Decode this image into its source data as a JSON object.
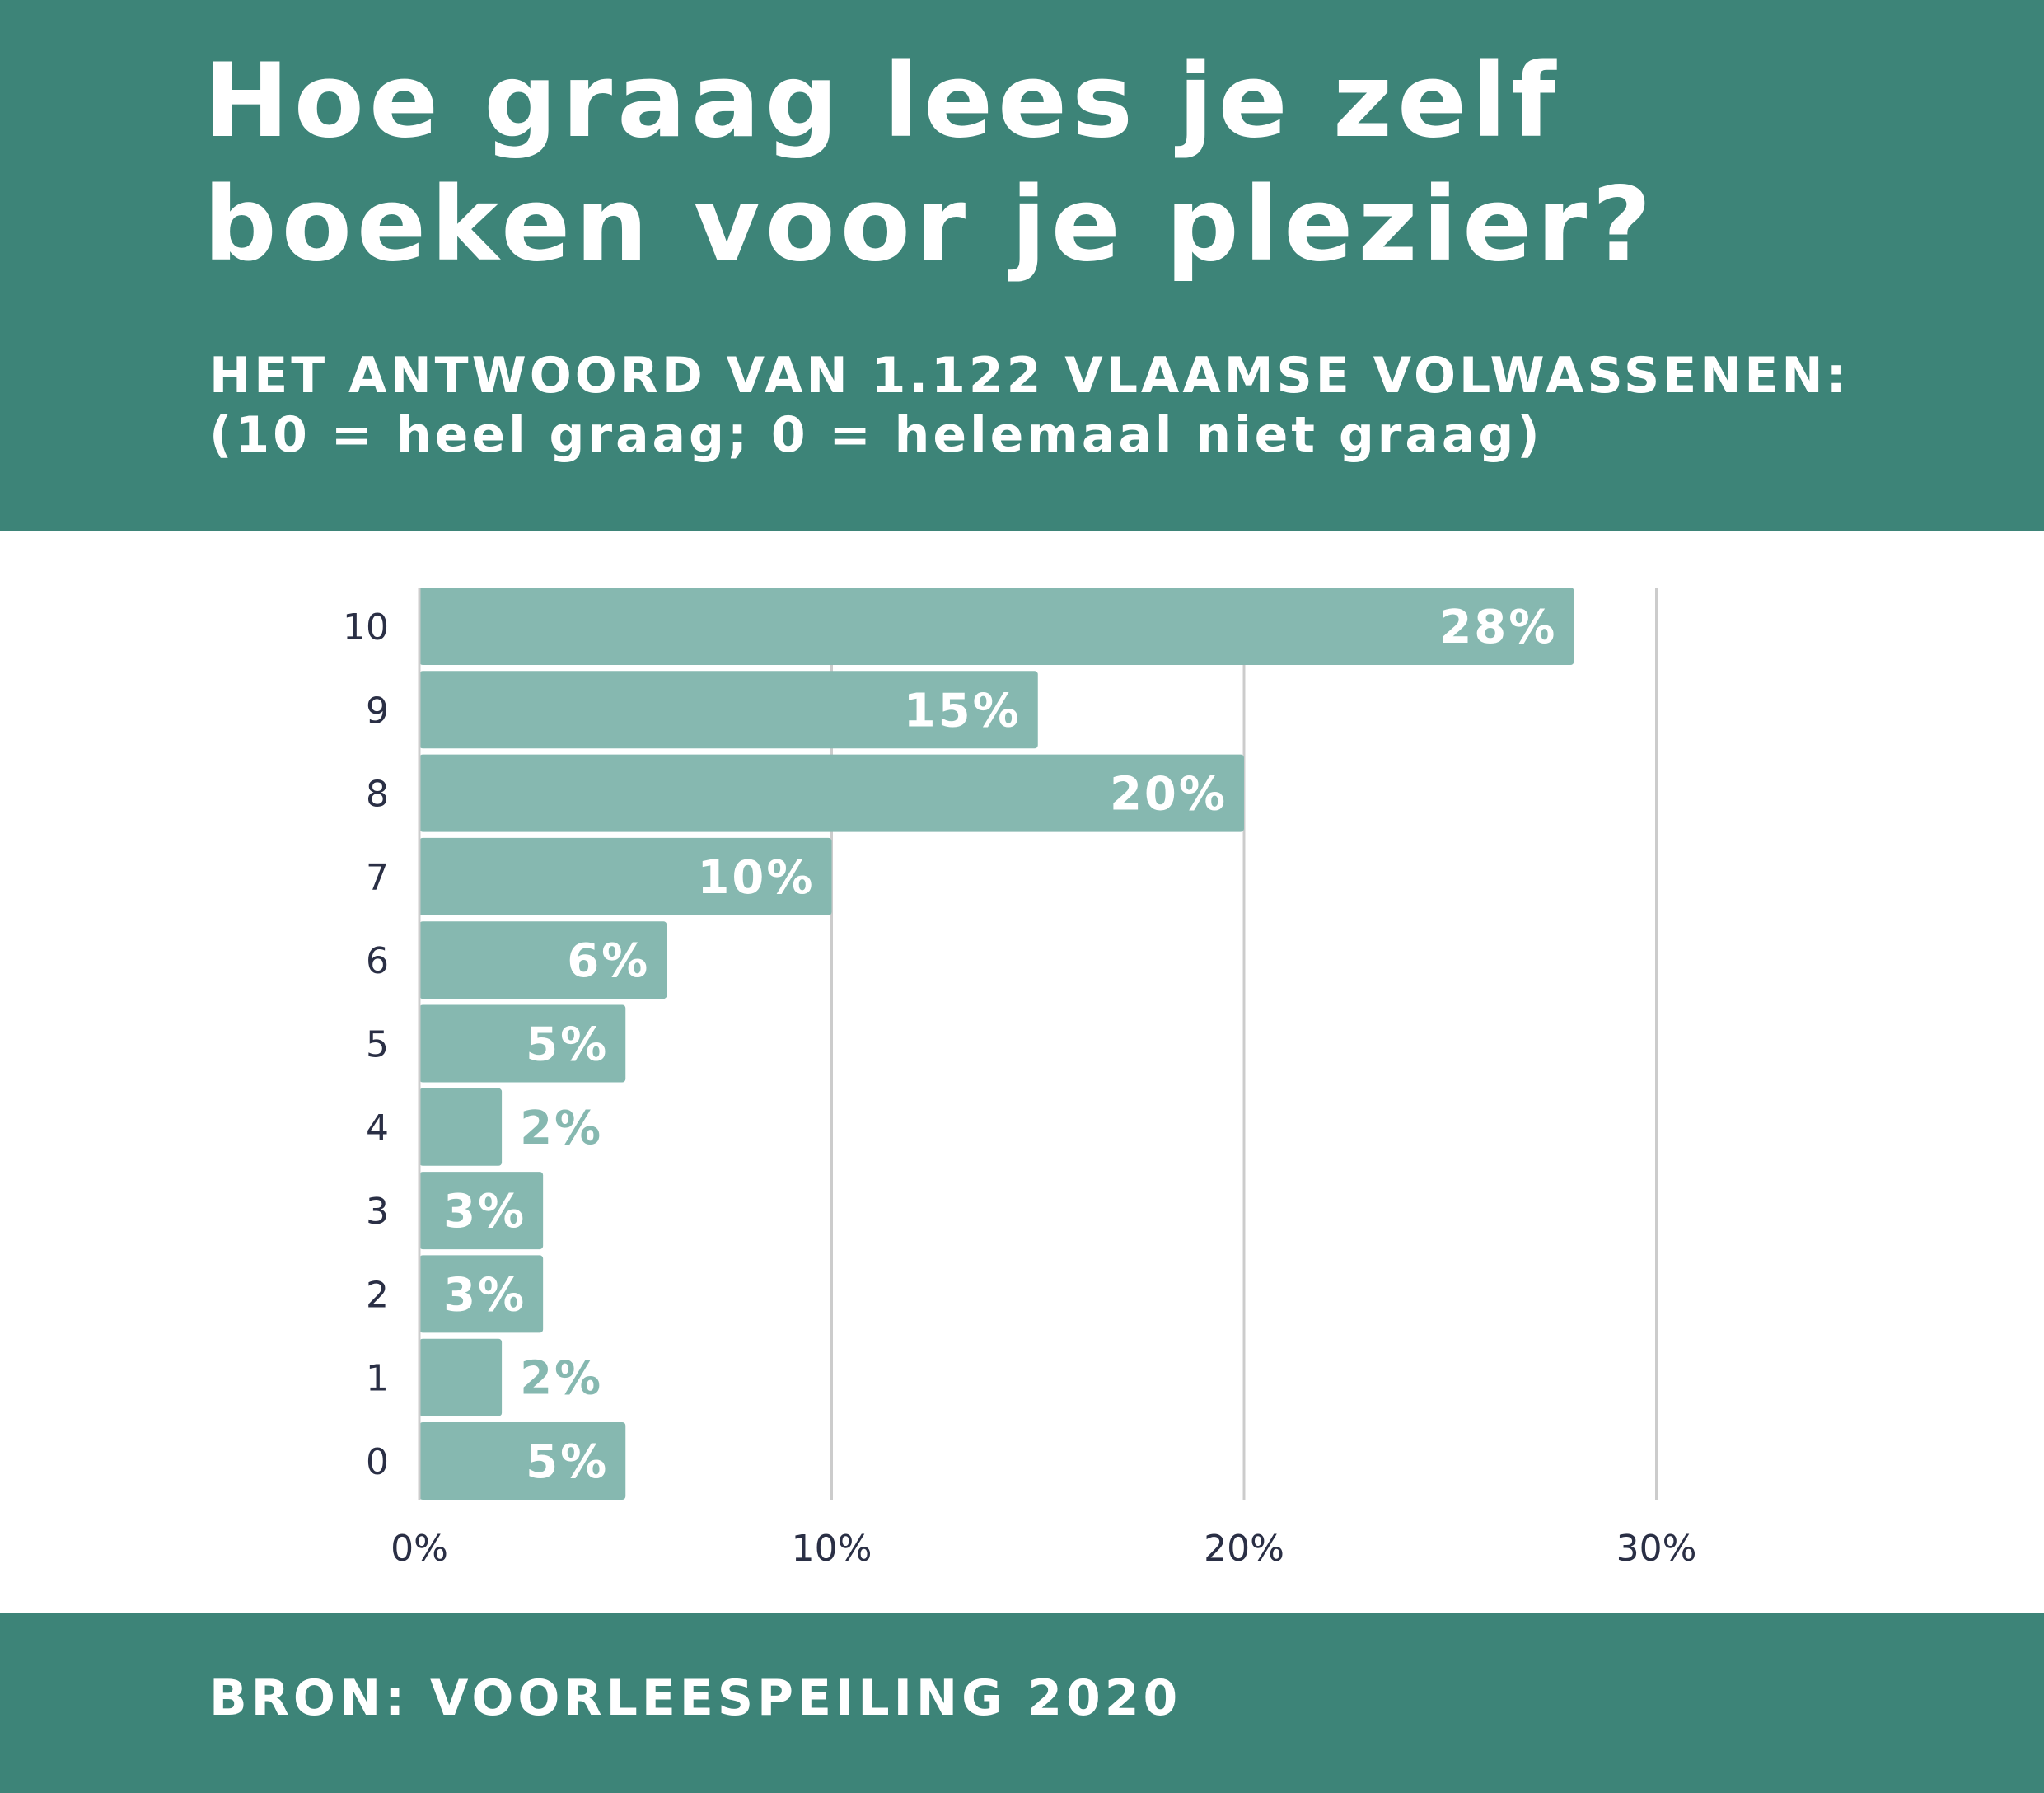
{
  "header": {
    "title": "Hoe graag lees je zelf\nboeken voor je plezier?",
    "subtitle_line1": "HET ANTWOORD VAN 1.122 VLAAMSE VOLWASSENEN:",
    "subtitle_line2": "(10 = heel graag; 0 = helemaal niet graag)"
  },
  "footer": {
    "source": "BRON: VOORLEESPEILING 2020"
  },
  "colors": {
    "brand": "#3d8478",
    "bar": "#86b8b0",
    "bar_label": "#ffffff",
    "outside_label": "#86b8b0",
    "axis_text": "#2a2f45",
    "gridline": "#cccccc"
  },
  "chart_data": {
    "type": "bar",
    "orientation": "horizontal",
    "categories": [
      "10",
      "9",
      "8",
      "7",
      "6",
      "5",
      "4",
      "3",
      "2",
      "1",
      "0"
    ],
    "values": [
      28,
      15,
      20,
      10,
      6,
      5,
      2,
      3,
      3,
      2,
      5
    ],
    "data_labels": [
      "28%",
      "15%",
      "20%",
      "10%",
      "6%",
      "5%",
      "2%",
      "3%",
      "3%",
      "2%",
      "5%"
    ],
    "xlim": [
      0,
      30
    ],
    "x_ticks": [
      0,
      10,
      20,
      30
    ],
    "x_tick_labels": [
      "0%",
      "10%",
      "20%",
      "30%"
    ],
    "grid": true,
    "legend": "none"
  }
}
